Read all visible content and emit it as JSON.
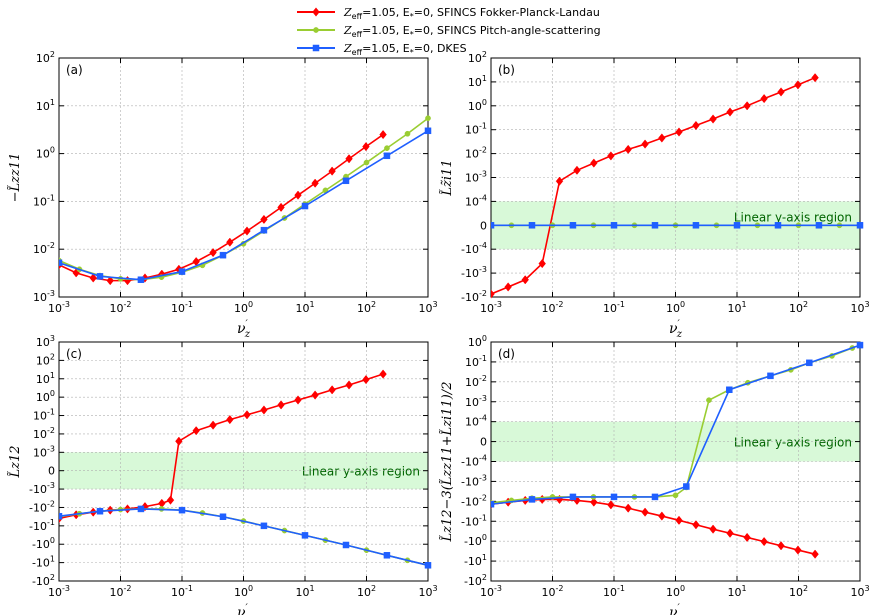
{
  "legend": [
    {
      "label_main": "Z",
      "label_sub": "eff",
      "label_rest": "=1.05, E",
      "label_sub2": "*",
      "label_end": "=0, SFINCS Fokker-Planck-Landau",
      "color": "#ff0000",
      "marker": "diamond"
    },
    {
      "label_main": "Z",
      "label_sub": "eff",
      "label_rest": "=1.05, E",
      "label_sub2": "*",
      "label_end": "=0, SFINCS Pitch-angle-scattering",
      "color": "#9acd32",
      "marker": "circle"
    },
    {
      "label_main": "Z",
      "label_sub": "eff",
      "label_rest": "=1.05, E",
      "label_sub2": "*",
      "label_end": "=0, DKES",
      "color": "#1f5fff",
      "marker": "square"
    }
  ],
  "region_label": "Linear y-axis region",
  "colors": {
    "fpl": "#ff0000",
    "pas": "#9acd32",
    "dkes": "#1f5fff",
    "region": "#90ee90"
  },
  "chart_data": [
    {
      "panel": "(a)",
      "type": "line",
      "title": "",
      "xlabel": "ν′z",
      "ylabel": "−L̃zz11",
      "xscale": "log",
      "yscale": "log",
      "xlim": [
        0.001,
        1000
      ],
      "ylim": [
        0.001,
        100
      ],
      "xticks": [
        "10-3",
        "10-2",
        "10-1",
        "100",
        "101",
        "102",
        "103"
      ],
      "yticks": [
        "10-3",
        "10-2",
        "10-1",
        "100",
        "101",
        "102"
      ],
      "series": [
        {
          "name": "FPL",
          "x": [
            0.001,
            0.0019,
            0.0036,
            0.0068,
            0.013,
            0.025,
            0.047,
            0.089,
            0.17,
            0.32,
            0.6,
            1.14,
            2.15,
            4.08,
            7.7,
            14.6,
            27.6,
            52,
            98,
            186
          ],
          "y": [
            0.0047,
            0.0032,
            0.0025,
            0.0022,
            0.0022,
            0.0025,
            0.003,
            0.0038,
            0.0055,
            0.0085,
            0.014,
            0.024,
            0.042,
            0.075,
            0.135,
            0.24,
            0.43,
            0.78,
            1.4,
            2.5
          ]
        },
        {
          "name": "PAS",
          "x": [
            0.001,
            0.00215,
            0.00464,
            0.01,
            0.0215,
            0.0464,
            0.1,
            0.215,
            0.464,
            1,
            2.15,
            4.64,
            10,
            21.5,
            46.4,
            100,
            215,
            464,
            1000
          ],
          "y": [
            0.0058,
            0.0038,
            0.0028,
            0.0024,
            0.0023,
            0.0026,
            0.0033,
            0.0046,
            0.0075,
            0.013,
            0.024,
            0.045,
            0.088,
            0.17,
            0.33,
            0.65,
            1.3,
            2.6,
            5.5
          ]
        },
        {
          "name": "DKES",
          "x": [
            0.001,
            0.00464,
            0.0215,
            0.1,
            0.464,
            2.15,
            10,
            46.4,
            215,
            1000
          ],
          "y": [
            0.0052,
            0.0027,
            0.0023,
            0.0034,
            0.0075,
            0.025,
            0.08,
            0.27,
            0.9,
            3.0
          ]
        }
      ]
    },
    {
      "panel": "(b)",
      "type": "line",
      "title": "",
      "xlabel": "ν′z",
      "ylabel": "L̃z̃i11",
      "xscale": "log",
      "yscale": "symlog",
      "linthresh": 0.0001,
      "xlim": [
        0.001,
        1000
      ],
      "ylim": [
        -0.01,
        100
      ],
      "xticks": [
        "10-3",
        "10-2",
        "10-1",
        "100",
        "101",
        "102",
        "103"
      ],
      "yticks": [
        "-10-2",
        "-10-3",
        "-10-4",
        "0",
        "10-4",
        "10-3",
        "10-2",
        "10-1",
        "100",
        "101",
        "102"
      ],
      "region_label": "Linear y-axis region",
      "series": [
        {
          "name": "FPL",
          "x": [
            0.001,
            0.0019,
            0.0036,
            0.0068,
            0.013,
            0.025,
            0.047,
            0.089,
            0.17,
            0.32,
            0.6,
            1.14,
            2.15,
            4.08,
            7.7,
            14.6,
            27.6,
            52,
            98,
            186
          ],
          "y": [
            -0.0075,
            -0.0038,
            -0.0019,
            -0.0004,
            0.0007,
            0.002,
            0.004,
            0.008,
            0.015,
            0.025,
            0.045,
            0.08,
            0.15,
            0.28,
            0.55,
            1.0,
            2.0,
            3.8,
            7.5,
            15
          ]
        },
        {
          "name": "PAS",
          "x": [
            0.001,
            0.00215,
            0.00464,
            0.01,
            0.0215,
            0.0464,
            0.1,
            0.215,
            0.464,
            1,
            2.15,
            4.64,
            10,
            21.5,
            46.4,
            100,
            215,
            464,
            1000
          ],
          "y": [
            0,
            0,
            0,
            0,
            0,
            0,
            0,
            0,
            0,
            0,
            0,
            0,
            0,
            0,
            0,
            0,
            0,
            0,
            0
          ]
        },
        {
          "name": "DKES",
          "x": [
            0.001,
            0.00464,
            0.0215,
            0.1,
            0.464,
            2.15,
            10,
            46.4,
            215,
            1000
          ],
          "y": [
            0,
            0,
            0,
            0,
            0,
            0,
            0,
            0,
            0,
            0
          ]
        }
      ]
    },
    {
      "panel": "(c)",
      "type": "line",
      "title": "",
      "xlabel": "ν′z",
      "ylabel": "L̃z12",
      "xscale": "log",
      "yscale": "symlog",
      "linthresh": 0.001,
      "xlim": [
        0.001,
        1000
      ],
      "ylim": [
        -100,
        1000
      ],
      "xticks": [
        "10-3",
        "10-2",
        "10-1",
        "100",
        "101",
        "102",
        "103"
      ],
      "yticks": [
        "-102",
        "-101",
        "-100",
        "-10-1",
        "-10-2",
        "-10-3",
        "0",
        "10-3",
        "10-2",
        "10-1",
        "100",
        "101",
        "102",
        "103"
      ],
      "region_label": "Linear y-axis region",
      "series": [
        {
          "name": "FPL",
          "x": [
            0.001,
            0.0019,
            0.0036,
            0.0068,
            0.013,
            0.025,
            0.047,
            0.065,
            0.089,
            0.17,
            0.32,
            0.6,
            1.14,
            2.15,
            4.08,
            7.7,
            14.6,
            27.6,
            52,
            98,
            186
          ],
          "y": [
            -0.04,
            -0.025,
            -0.018,
            -0.014,
            -0.012,
            -0.009,
            -0.006,
            -0.004,
            0.004,
            0.015,
            0.03,
            0.06,
            0.11,
            0.2,
            0.38,
            0.7,
            1.3,
            2.5,
            4.6,
            9,
            18
          ]
        },
        {
          "name": "PAS",
          "x": [
            0.001,
            0.00215,
            0.00464,
            0.01,
            0.0215,
            0.0464,
            0.1,
            0.215,
            0.464,
            1,
            2.15,
            4.64,
            10,
            21.5,
            46.4,
            100,
            215,
            464,
            1000
          ],
          "y": [
            -0.032,
            -0.022,
            -0.016,
            -0.013,
            -0.012,
            -0.012,
            -0.014,
            -0.02,
            -0.032,
            -0.055,
            -0.1,
            -0.18,
            -0.33,
            -0.6,
            -1.1,
            -2.1,
            -4,
            -7.5,
            -14
          ]
        },
        {
          "name": "DKES",
          "x": [
            0.001,
            0.00464,
            0.0215,
            0.1,
            0.464,
            2.15,
            10,
            46.4,
            215,
            1000
          ],
          "y": [
            -0.03,
            -0.016,
            -0.012,
            -0.014,
            -0.032,
            -0.1,
            -0.33,
            -1.1,
            -4,
            -14
          ]
        }
      ]
    },
    {
      "panel": "(d)",
      "type": "line",
      "title": "",
      "xlabel": "ν′z",
      "ylabel": "L̃z12−3(L̃zz11+L̃zi11)/2",
      "xscale": "log",
      "yscale": "symlog",
      "linthresh": 0.0001,
      "xlim": [
        0.001,
        1000
      ],
      "ylim": [
        -100,
        1
      ],
      "xticks": [
        "10-3",
        "10-2",
        "10-1",
        "100",
        "101",
        "102",
        "103"
      ],
      "yticks": [
        "-102",
        "-101",
        "-100",
        "-10-1",
        "-10-2",
        "-10-3",
        "-10-4",
        "0",
        "10-4",
        "10-3",
        "10-2",
        "10-1",
        "100"
      ],
      "region_label": "Linear y-axis region",
      "series": [
        {
          "name": "FPL",
          "x": [
            0.001,
            0.0019,
            0.0036,
            0.0068,
            0.013,
            0.025,
            0.047,
            0.089,
            0.17,
            0.32,
            0.6,
            1.14,
            2.15,
            4.08,
            7.7,
            14.6,
            27.6,
            52,
            98,
            186
          ],
          "y": [
            -0.014,
            -0.011,
            -0.009,
            -0.008,
            -0.008,
            -0.009,
            -0.011,
            -0.015,
            -0.022,
            -0.035,
            -0.055,
            -0.09,
            -0.15,
            -0.25,
            -0.4,
            -0.65,
            -1.05,
            -1.7,
            -2.8,
            -4.5
          ]
        },
        {
          "name": "PAS",
          "x": [
            0.001,
            0.00215,
            0.00464,
            0.01,
            0.0215,
            0.0464,
            0.1,
            0.215,
            0.464,
            1,
            1.5,
            3.5,
            7.5,
            15,
            35,
            75,
            150,
            350,
            750
          ],
          "y": [
            -0.012,
            -0.009,
            -0.007,
            -0.006,
            -0.006,
            -0.006,
            -0.006,
            -0.006,
            -0.006,
            -0.005,
            -0.002,
            0.0012,
            0.004,
            0.009,
            0.02,
            0.04,
            0.09,
            0.2,
            0.5
          ]
        },
        {
          "name": "DKES",
          "x": [
            0.001,
            0.00464,
            0.0215,
            0.1,
            0.464,
            1.5,
            7.5,
            35,
            150,
            1000
          ],
          "y": [
            -0.014,
            -0.008,
            -0.006,
            -0.006,
            -0.006,
            -0.0018,
            0.004,
            0.02,
            0.09,
            0.7
          ]
        }
      ]
    }
  ]
}
